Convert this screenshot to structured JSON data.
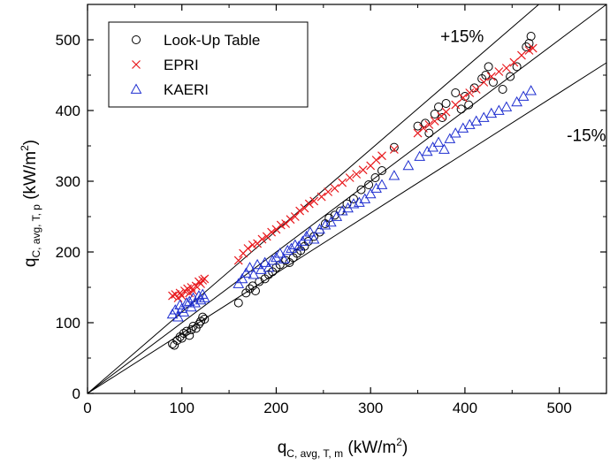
{
  "chart_data": {
    "type": "scatter",
    "xlabel": {
      "main": "q",
      "sub": "C, avg, T, m",
      "unit": " (kW/m",
      "sup": "2",
      "close": ")"
    },
    "ylabel": {
      "main": "q",
      "sub": "C, avg, T, p",
      "unit": " (kW/m",
      "sup": "2",
      "close": ")"
    },
    "xlim": [
      0,
      550
    ],
    "ylim": [
      0,
      550
    ],
    "xticks": [
      0,
      100,
      200,
      300,
      400,
      500
    ],
    "yticks": [
      0,
      100,
      200,
      300,
      400,
      500
    ],
    "legend_position": "top-left",
    "reference_lines": [
      {
        "slope": 1.15,
        "label": "+15%"
      },
      {
        "slope": 1.0,
        "label": ""
      },
      {
        "slope": 0.85,
        "label": "-15%"
      }
    ],
    "series": [
      {
        "name": "Look-Up Table",
        "marker": "circle",
        "color": "#000000",
        "points": [
          [
            90,
            70
          ],
          [
            92,
            68
          ],
          [
            95,
            75
          ],
          [
            98,
            80
          ],
          [
            100,
            78
          ],
          [
            102,
            85
          ],
          [
            105,
            88
          ],
          [
            108,
            82
          ],
          [
            110,
            90
          ],
          [
            112,
            95
          ],
          [
            115,
            92
          ],
          [
            118,
            98
          ],
          [
            120,
            102
          ],
          [
            122,
            108
          ],
          [
            124,
            105
          ],
          [
            160,
            128
          ],
          [
            168,
            142
          ],
          [
            172,
            148
          ],
          [
            175,
            152
          ],
          [
            178,
            145
          ],
          [
            182,
            158
          ],
          [
            188,
            162
          ],
          [
            192,
            168
          ],
          [
            196,
            172
          ],
          [
            200,
            178
          ],
          [
            204,
            182
          ],
          [
            210,
            188
          ],
          [
            214,
            185
          ],
          [
            218,
            192
          ],
          [
            222,
            198
          ],
          [
            226,
            202
          ],
          [
            230,
            208
          ],
          [
            234,
            215
          ],
          [
            240,
            222
          ],
          [
            246,
            228
          ],
          [
            252,
            240
          ],
          [
            256,
            248
          ],
          [
            262,
            252
          ],
          [
            268,
            258
          ],
          [
            275,
            268
          ],
          [
            282,
            275
          ],
          [
            290,
            288
          ],
          [
            298,
            295
          ],
          [
            305,
            305
          ],
          [
            312,
            315
          ],
          [
            325,
            348
          ],
          [
            350,
            378
          ],
          [
            358,
            382
          ],
          [
            362,
            368
          ],
          [
            368,
            395
          ],
          [
            372,
            405
          ],
          [
            376,
            390
          ],
          [
            380,
            410
          ],
          [
            390,
            425
          ],
          [
            396,
            402
          ],
          [
            400,
            420
          ],
          [
            404,
            408
          ],
          [
            410,
            432
          ],
          [
            418,
            445
          ],
          [
            422,
            450
          ],
          [
            425,
            462
          ],
          [
            430,
            440
          ],
          [
            440,
            430
          ],
          [
            448,
            448
          ],
          [
            455,
            462
          ],
          [
            465,
            490
          ],
          [
            468,
            495
          ],
          [
            470,
            505
          ]
        ]
      },
      {
        "name": "EPRI",
        "marker": "x",
        "color": "#e8191d",
        "points": [
          [
            90,
            138
          ],
          [
            93,
            140
          ],
          [
            96,
            135
          ],
          [
            98,
            142
          ],
          [
            100,
            138
          ],
          [
            103,
            145
          ],
          [
            106,
            148
          ],
          [
            108,
            142
          ],
          [
            110,
            150
          ],
          [
            112,
            145
          ],
          [
            115,
            152
          ],
          [
            118,
            158
          ],
          [
            120,
            155
          ],
          [
            122,
            160
          ],
          [
            124,
            162
          ],
          [
            160,
            188
          ],
          [
            165,
            198
          ],
          [
            170,
            205
          ],
          [
            175,
            210
          ],
          [
            180,
            212
          ],
          [
            185,
            218
          ],
          [
            190,
            222
          ],
          [
            195,
            228
          ],
          [
            200,
            232
          ],
          [
            205,
            238
          ],
          [
            210,
            240
          ],
          [
            215,
            246
          ],
          [
            220,
            250
          ],
          [
            225,
            258
          ],
          [
            230,
            262
          ],
          [
            235,
            268
          ],
          [
            240,
            272
          ],
          [
            248,
            278
          ],
          [
            255,
            285
          ],
          [
            262,
            290
          ],
          [
            270,
            298
          ],
          [
            278,
            305
          ],
          [
            285,
            310
          ],
          [
            292,
            316
          ],
          [
            300,
            322
          ],
          [
            306,
            330
          ],
          [
            312,
            336
          ],
          [
            325,
            345
          ],
          [
            350,
            368
          ],
          [
            356,
            375
          ],
          [
            362,
            380
          ],
          [
            368,
            385
          ],
          [
            375,
            392
          ],
          [
            380,
            398
          ],
          [
            390,
            408
          ],
          [
            398,
            418
          ],
          [
            405,
            425
          ],
          [
            412,
            430
          ],
          [
            420,
            440
          ],
          [
            428,
            448
          ],
          [
            436,
            455
          ],
          [
            444,
            460
          ],
          [
            452,
            468
          ],
          [
            460,
            478
          ],
          [
            468,
            485
          ],
          [
            472,
            488
          ]
        ]
      },
      {
        "name": "KAERI",
        "marker": "triangle",
        "color": "#1f2fd0",
        "points": [
          [
            90,
            112
          ],
          [
            93,
            118
          ],
          [
            96,
            108
          ],
          [
            98,
            125
          ],
          [
            100,
            120
          ],
          [
            102,
            115
          ],
          [
            105,
            128
          ],
          [
            108,
            130
          ],
          [
            110,
            122
          ],
          [
            112,
            135
          ],
          [
            114,
            128
          ],
          [
            118,
            138
          ],
          [
            120,
            132
          ],
          [
            122,
            140
          ],
          [
            124,
            135
          ],
          [
            160,
            155
          ],
          [
            164,
            162
          ],
          [
            168,
            170
          ],
          [
            172,
            178
          ],
          [
            176,
            168
          ],
          [
            180,
            182
          ],
          [
            184,
            175
          ],
          [
            188,
            185
          ],
          [
            192,
            178
          ],
          [
            196,
            188
          ],
          [
            200,
            192
          ],
          [
            204,
            198
          ],
          [
            208,
            190
          ],
          [
            212,
            202
          ],
          [
            216,
            205
          ],
          [
            220,
            210
          ],
          [
            224,
            208
          ],
          [
            228,
            215
          ],
          [
            232,
            222
          ],
          [
            236,
            228
          ],
          [
            240,
            218
          ],
          [
            246,
            232
          ],
          [
            252,
            238
          ],
          [
            258,
            242
          ],
          [
            264,
            250
          ],
          [
            270,
            258
          ],
          [
            276,
            262
          ],
          [
            282,
            268
          ],
          [
            288,
            270
          ],
          [
            294,
            275
          ],
          [
            300,
            282
          ],
          [
            306,
            290
          ],
          [
            312,
            295
          ],
          [
            325,
            308
          ],
          [
            340,
            322
          ],
          [
            352,
            335
          ],
          [
            360,
            342
          ],
          [
            366,
            348
          ],
          [
            372,
            355
          ],
          [
            378,
            345
          ],
          [
            384,
            360
          ],
          [
            390,
            368
          ],
          [
            398,
            375
          ],
          [
            405,
            380
          ],
          [
            412,
            385
          ],
          [
            420,
            390
          ],
          [
            428,
            396
          ],
          [
            436,
            400
          ],
          [
            444,
            405
          ],
          [
            455,
            412
          ],
          [
            462,
            420
          ],
          [
            470,
            428
          ]
        ]
      }
    ]
  }
}
